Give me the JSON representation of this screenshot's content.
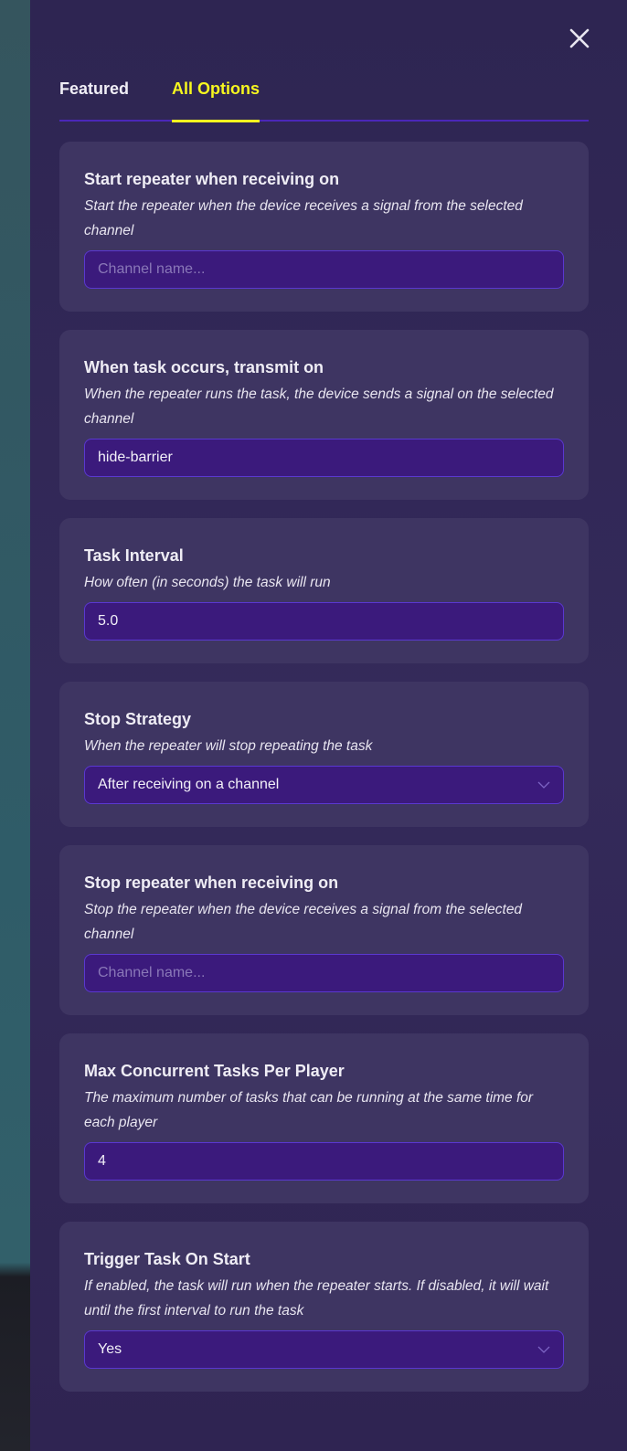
{
  "tabs": [
    {
      "label": "Featured",
      "active": false
    },
    {
      "label": "All Options",
      "active": true
    }
  ],
  "colors": {
    "accent": "#f7f71f",
    "panel": "#2e2552",
    "card": "#3e3562",
    "input": "#3b1a7c",
    "input_border": "#5a38d0"
  },
  "options": [
    {
      "title": "Start repeater when receiving on",
      "description": "Start the repeater when the device receives a signal from the selected channel",
      "type": "text",
      "value": "",
      "placeholder": "Channel name..."
    },
    {
      "title": "When task occurs, transmit on",
      "description": "When the repeater runs the task, the device sends a signal on the selected channel",
      "type": "text",
      "value": "hide-barrier",
      "placeholder": "Channel name..."
    },
    {
      "title": "Task Interval",
      "description": "How often (in seconds) the task will run",
      "type": "number",
      "value": "5.0"
    },
    {
      "title": "Stop Strategy",
      "description": "When the repeater will stop repeating the task",
      "type": "select",
      "value": "After receiving on a channel"
    },
    {
      "title": "Stop repeater when receiving on",
      "description": "Stop the repeater when the device receives a signal from the selected channel",
      "type": "text",
      "value": "",
      "placeholder": "Channel name..."
    },
    {
      "title": "Max Concurrent Tasks Per Player",
      "description": "The maximum number of tasks that can be running at the same time for each player",
      "type": "number",
      "value": "4"
    },
    {
      "title": "Trigger Task On Start",
      "description": "If enabled, the task will run when the repeater starts. If disabled, it will wait until the first interval to run the task",
      "type": "select",
      "value": "Yes"
    }
  ]
}
